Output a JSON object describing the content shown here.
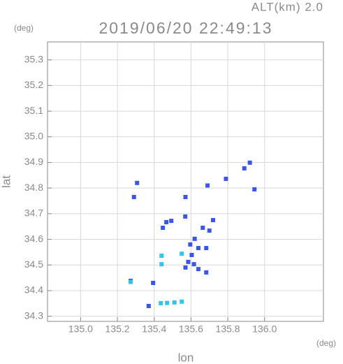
{
  "chart_data": {
    "type": "scatter",
    "title": "2019/06/20 22:49:13",
    "subtitle": "ALT(km) 2.0",
    "y_unit": "(deg)",
    "x_unit": "(deg)",
    "x_label": "lon",
    "y_label": "lat",
    "xlim": [
      134.82,
      136.32
    ],
    "ylim": [
      34.28,
      35.37
    ],
    "xticks": [
      {
        "value": 135,
        "label": "135.0"
      },
      135.2,
      135.4,
      135.6,
      135.8,
      {
        "value": 136,
        "label": "136.0"
      }
    ],
    "yticks": [
      34.3,
      34.4,
      34.5,
      34.6,
      34.7,
      34.8,
      34.9,
      {
        "value": 35,
        "label": "35.0"
      },
      35.1,
      35.2,
      35.3
    ],
    "grid": true,
    "series": [
      {
        "color": "#3a55e8",
        "x": [
          135.307,
          135.29,
          135.57,
          135.69,
          135.79,
          135.89,
          135.92,
          135.945,
          135.72,
          135.7,
          135.664,
          135.569,
          135.466,
          135.447,
          135.493,
          135.62,
          135.596,
          135.64,
          135.683,
          135.604,
          135.585,
          135.616,
          135.57,
          135.683,
          135.64,
          135.272,
          135.394,
          135.37
        ],
        "y": [
          34.82,
          34.765,
          34.765,
          34.81,
          34.836,
          34.877,
          34.899,
          34.795,
          34.675,
          34.634,
          34.645,
          34.689,
          34.667,
          34.645,
          34.672,
          34.602,
          34.58,
          34.566,
          34.566,
          34.539,
          34.512,
          34.503,
          34.49,
          34.471,
          34.484,
          34.438,
          34.43,
          34.34
        ]
      },
      {
        "color": "#33c4ee",
        "x": [
          135.436,
          135.47,
          135.51,
          135.55,
          135.55,
          135.44,
          135.44,
          135.272
        ],
        "y": [
          34.351,
          34.352,
          34.354,
          34.357,
          34.544,
          34.536,
          34.503,
          34.434
        ]
      }
    ]
  }
}
